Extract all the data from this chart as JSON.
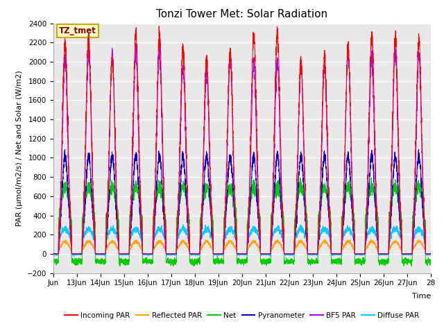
{
  "title": "Tonzi Tower Met: Solar Radiation",
  "ylabel": "PAR (μmol/m2/s) / Net and Solar (W/m2)",
  "xlabel": "Time",
  "box_label": "TZ_tmet",
  "ylim": [
    -200,
    2400
  ],
  "yticks": [
    -200,
    0,
    200,
    400,
    600,
    800,
    1000,
    1200,
    1400,
    1600,
    1800,
    2000,
    2200,
    2400
  ],
  "x_tick_labels": [
    "Jun",
    "13Jun",
    "14Jun",
    "15Jun",
    "16Jun",
    "17Jun",
    "18Jun",
    "19Jun",
    "20Jun",
    "21Jun",
    "22Jun",
    "23Jun",
    "24Jun",
    "25Jun",
    "26Jun",
    "27Jun",
    "28"
  ],
  "series_colors": {
    "incoming_par": "#ff0000",
    "reflected_par": "#ffa500",
    "net": "#00cc00",
    "pyranometer": "#0000cc",
    "bf5_par": "#aa00ff",
    "diffuse_par": "#00ccff"
  },
  "legend": [
    {
      "label": "Incoming PAR",
      "color": "#ff0000"
    },
    {
      "label": "Reflected PAR",
      "color": "#ffa500"
    },
    {
      "label": "Net",
      "color": "#00cc00"
    },
    {
      "label": "Pyranometer",
      "color": "#0000cc"
    },
    {
      "label": "BF5 PAR",
      "color": "#aa00ff"
    },
    {
      "label": "Diffuse PAR",
      "color": "#00ccff"
    }
  ],
  "background_color": "#e8e8e8",
  "n_days": 16,
  "points_per_day": 288,
  "title_fontsize": 11,
  "axis_fontsize": 8,
  "tick_fontsize": 7.5
}
